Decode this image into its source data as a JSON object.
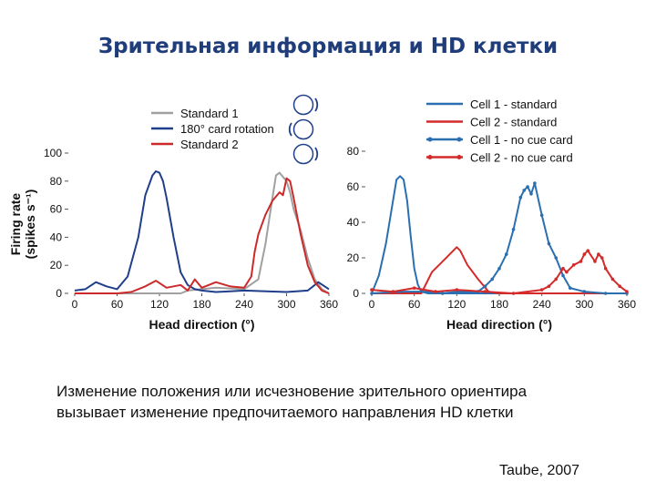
{
  "slide": {
    "title": "Зрительная информация и  HD клетки",
    "caption_line1": "Изменение положения или исчезновение зрительного ориентира",
    "caption_line2": "вызывает изменение предпочитаемого направления HD клетки",
    "citation": "Taube, 2007"
  },
  "chart_data": [
    {
      "type": "line",
      "ylabel_line1": "Firing rate",
      "ylabel_line2": "(spikes s⁻¹)",
      "xlabel": "Head direction (°)",
      "xlim": [
        0,
        360
      ],
      "ylim": [
        0,
        100
      ],
      "xticks": [
        0,
        60,
        120,
        180,
        240,
        300,
        360
      ],
      "yticks": [
        0,
        20,
        40,
        60,
        80,
        100
      ],
      "legend_position": "top",
      "icons": [
        "cue-card-ring-icon",
        "cue-card-ring-icon",
        "cue-card-ring-icon"
      ],
      "series": [
        {
          "name": "Standard 1",
          "color": "#a0a0a0",
          "marker": false,
          "x": [
            0,
            60,
            150,
            160,
            200,
            240,
            260,
            270,
            280,
            285,
            290,
            300,
            305,
            310,
            320,
            330,
            340,
            350,
            360
          ],
          "y": [
            0,
            0,
            0,
            2,
            4,
            3,
            10,
            35,
            68,
            84,
            86,
            80,
            72,
            60,
            45,
            25,
            10,
            3,
            0
          ]
        },
        {
          "name": "180° card rotation",
          "color": "#1f3f8a",
          "marker": false,
          "x": [
            0,
            15,
            30,
            45,
            60,
            75,
            90,
            100,
            110,
            115,
            120,
            125,
            130,
            140,
            150,
            160,
            170,
            180,
            200,
            240,
            300,
            330,
            345,
            360
          ],
          "y": [
            2,
            3,
            8,
            5,
            3,
            12,
            40,
            70,
            84,
            87,
            86,
            80,
            68,
            40,
            15,
            6,
            3,
            2,
            1,
            2,
            1,
            2,
            8,
            3
          ]
        },
        {
          "name": "Standard 2",
          "color": "#cc2a2a",
          "marker": false,
          "x": [
            0,
            60,
            80,
            100,
            115,
            130,
            150,
            160,
            170,
            180,
            200,
            220,
            240,
            250,
            255,
            260,
            270,
            280,
            290,
            295,
            300,
            305,
            310,
            320,
            330,
            340,
            350,
            360
          ],
          "y": [
            0,
            0,
            1,
            5,
            9,
            4,
            6,
            2,
            10,
            4,
            8,
            5,
            4,
            12,
            30,
            42,
            56,
            66,
            72,
            70,
            82,
            80,
            68,
            42,
            20,
            8,
            2,
            0
          ]
        }
      ]
    },
    {
      "type": "line",
      "xlabel": "Head direction (°)",
      "xlim": [
        0,
        360
      ],
      "ylim": [
        0,
        80
      ],
      "xticks": [
        0,
        60,
        120,
        180,
        240,
        300,
        360
      ],
      "yticks": [
        0,
        20,
        40,
        60,
        80
      ],
      "legend_position": "top",
      "series": [
        {
          "name": "Cell 1 - standard",
          "color": "#2a6fb0",
          "marker": false,
          "x": [
            0,
            10,
            20,
            30,
            35,
            40,
            45,
            50,
            55,
            60,
            65,
            70,
            80,
            100,
            360
          ],
          "y": [
            0,
            10,
            28,
            52,
            64,
            66,
            64,
            52,
            32,
            14,
            5,
            1,
            0,
            0,
            0
          ]
        },
        {
          "name": "Cell 2 - standard",
          "color": "#d42a2a",
          "marker": false,
          "x": [
            0,
            40,
            70,
            85,
            100,
            115,
            120,
            125,
            135,
            150,
            165,
            180,
            200,
            360
          ],
          "y": [
            0,
            0,
            0,
            12,
            18,
            24,
            26,
            24,
            16,
            8,
            1,
            0,
            0,
            0
          ]
        },
        {
          "name": "Cell 1 - no cue card",
          "color": "#2a6fb0",
          "marker": true,
          "x": [
            0,
            40,
            80,
            100,
            120,
            150,
            160,
            170,
            180,
            190,
            200,
            210,
            215,
            220,
            225,
            230,
            240,
            250,
            260,
            270,
            280,
            300,
            330,
            360
          ],
          "y": [
            0,
            1,
            1,
            0,
            1,
            1,
            4,
            8,
            14,
            22,
            36,
            54,
            58,
            60,
            56,
            62,
            44,
            28,
            20,
            10,
            3,
            1,
            0,
            0
          ]
        },
        {
          "name": "Cell 2 - no cue card",
          "color": "#d42a2a",
          "marker": true,
          "x": [
            0,
            30,
            60,
            90,
            120,
            160,
            200,
            240,
            250,
            260,
            270,
            275,
            285,
            295,
            300,
            305,
            315,
            320,
            325,
            330,
            340,
            350,
            360
          ],
          "y": [
            2,
            1,
            3,
            1,
            2,
            1,
            0,
            2,
            4,
            8,
            14,
            12,
            16,
            18,
            22,
            24,
            18,
            22,
            20,
            14,
            8,
            4,
            1
          ]
        }
      ]
    }
  ]
}
